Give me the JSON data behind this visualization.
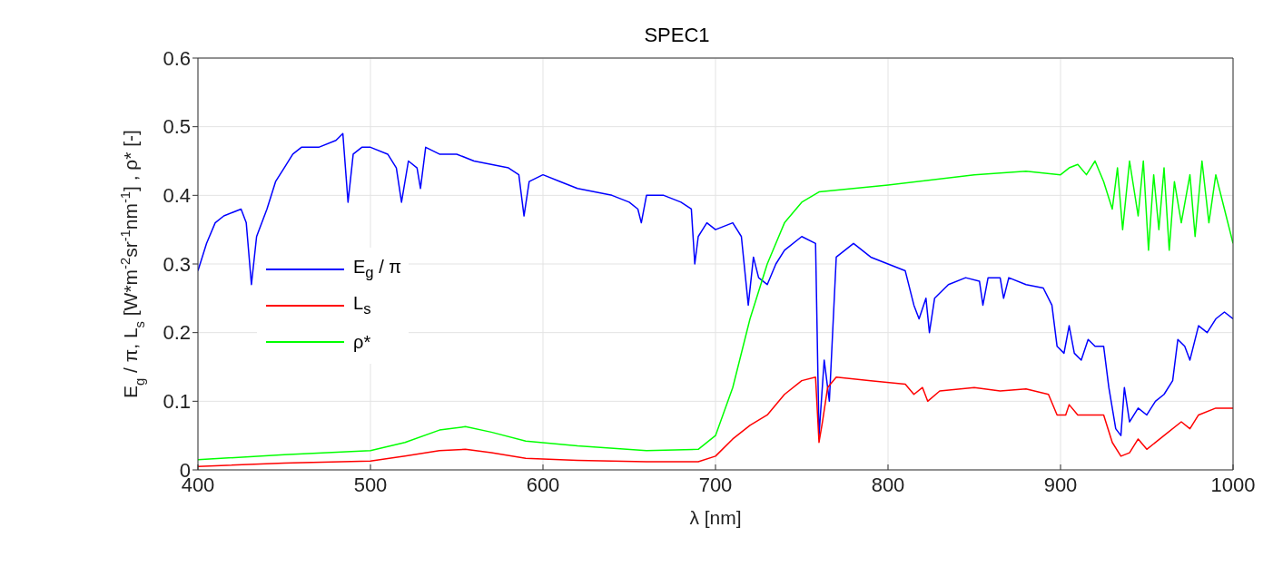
{
  "chart_data": {
    "type": "line",
    "title": "SPEC1",
    "xlabel": "λ [nm]",
    "ylabel": "E$_{g}$ / π, L$_{s}$ [W*m$^{-2}$sr$^{-1}$nm$^{-1}$] , ρ* [-]",
    "xlim": [
      400,
      1000
    ],
    "xticks": [
      400,
      500,
      600,
      700,
      800,
      900,
      1000
    ],
    "ylim": [
      0,
      0.6
    ],
    "yticks": [
      0,
      0.1,
      0.2,
      0.3,
      0.4,
      0.5,
      0.6
    ],
    "grid": true,
    "legend": "center left",
    "line_style": "solid",
    "marker": "none",
    "series": [
      {
        "name": "E$_{g}$ / π",
        "color": "#0000ff",
        "x": [
          400,
          405,
          410,
          415,
          420,
          425,
          428,
          431,
          434,
          440,
          445,
          450,
          455,
          460,
          470,
          480,
          484,
          487,
          490,
          495,
          500,
          510,
          515,
          518,
          522,
          527,
          529,
          532,
          540,
          550,
          560,
          570,
          580,
          586,
          589,
          592,
          600,
          610,
          620,
          630,
          640,
          650,
          655,
          657,
          660,
          670,
          680,
          686,
          688,
          690,
          695,
          700,
          710,
          715,
          719,
          722,
          725,
          730,
          735,
          740,
          750,
          758,
          760,
          763,
          766,
          770,
          780,
          790,
          800,
          810,
          815,
          818,
          822,
          824,
          827,
          835,
          845,
          853,
          855,
          858,
          865,
          867,
          870,
          880,
          890,
          895,
          898,
          902,
          905,
          908,
          912,
          916,
          920,
          925,
          928,
          932,
          935,
          937,
          940,
          945,
          950,
          955,
          960,
          965,
          968,
          972,
          975,
          980,
          985,
          990,
          995,
          1000
        ],
        "values": [
          0.29,
          0.33,
          0.36,
          0.37,
          0.375,
          0.38,
          0.36,
          0.27,
          0.34,
          0.38,
          0.42,
          0.44,
          0.46,
          0.47,
          0.47,
          0.48,
          0.49,
          0.39,
          0.46,
          0.47,
          0.47,
          0.46,
          0.44,
          0.39,
          0.45,
          0.44,
          0.41,
          0.47,
          0.46,
          0.46,
          0.45,
          0.445,
          0.44,
          0.43,
          0.37,
          0.42,
          0.43,
          0.42,
          0.41,
          0.405,
          0.4,
          0.39,
          0.38,
          0.36,
          0.4,
          0.4,
          0.39,
          0.38,
          0.3,
          0.34,
          0.36,
          0.35,
          0.36,
          0.34,
          0.24,
          0.31,
          0.28,
          0.27,
          0.3,
          0.32,
          0.34,
          0.33,
          0.05,
          0.16,
          0.1,
          0.31,
          0.33,
          0.31,
          0.3,
          0.29,
          0.24,
          0.22,
          0.25,
          0.2,
          0.25,
          0.27,
          0.28,
          0.275,
          0.24,
          0.28,
          0.28,
          0.25,
          0.28,
          0.27,
          0.265,
          0.24,
          0.18,
          0.17,
          0.21,
          0.17,
          0.16,
          0.19,
          0.18,
          0.18,
          0.12,
          0.06,
          0.05,
          0.12,
          0.07,
          0.09,
          0.08,
          0.1,
          0.11,
          0.13,
          0.19,
          0.18,
          0.16,
          0.21,
          0.2,
          0.22,
          0.23,
          0.22
        ]
      },
      {
        "name": "L$_{s}$",
        "color": "#ff0000",
        "x": [
          400,
          450,
          500,
          520,
          540,
          555,
          570,
          590,
          620,
          660,
          690,
          700,
          710,
          720,
          730,
          740,
          750,
          758,
          760,
          762,
          765,
          770,
          790,
          810,
          815,
          820,
          823,
          830,
          850,
          865,
          880,
          893,
          898,
          903,
          905,
          910,
          920,
          925,
          930,
          935,
          940,
          945,
          950,
          960,
          970,
          975,
          980,
          990,
          1000
        ],
        "values": [
          0.005,
          0.01,
          0.013,
          0.02,
          0.028,
          0.03,
          0.025,
          0.017,
          0.014,
          0.012,
          0.012,
          0.02,
          0.045,
          0.065,
          0.08,
          0.11,
          0.13,
          0.135,
          0.04,
          0.07,
          0.12,
          0.135,
          0.13,
          0.125,
          0.11,
          0.12,
          0.1,
          0.115,
          0.12,
          0.115,
          0.118,
          0.11,
          0.08,
          0.08,
          0.095,
          0.08,
          0.08,
          0.08,
          0.04,
          0.02,
          0.025,
          0.045,
          0.03,
          0.05,
          0.07,
          0.06,
          0.08,
          0.09,
          0.09
        ]
      },
      {
        "name": "ρ*",
        "color": "#00ff00",
        "x": [
          400,
          450,
          500,
          520,
          540,
          555,
          570,
          590,
          620,
          660,
          690,
          700,
          710,
          720,
          730,
          740,
          750,
          760,
          780,
          800,
          850,
          880,
          900,
          905,
          910,
          915,
          920,
          925,
          930,
          933,
          936,
          940,
          945,
          948,
          951,
          954,
          957,
          960,
          963,
          966,
          970,
          975,
          978,
          982,
          986,
          990,
          995,
          1000
        ],
        "values": [
          0.015,
          0.022,
          0.028,
          0.04,
          0.058,
          0.063,
          0.055,
          0.042,
          0.035,
          0.028,
          0.03,
          0.05,
          0.12,
          0.22,
          0.3,
          0.36,
          0.39,
          0.405,
          0.41,
          0.415,
          0.43,
          0.435,
          0.43,
          0.44,
          0.445,
          0.43,
          0.45,
          0.42,
          0.38,
          0.44,
          0.35,
          0.45,
          0.37,
          0.45,
          0.32,
          0.43,
          0.35,
          0.44,
          0.32,
          0.42,
          0.36,
          0.43,
          0.34,
          0.45,
          0.36,
          0.43,
          0.38,
          0.33
        ]
      }
    ]
  }
}
